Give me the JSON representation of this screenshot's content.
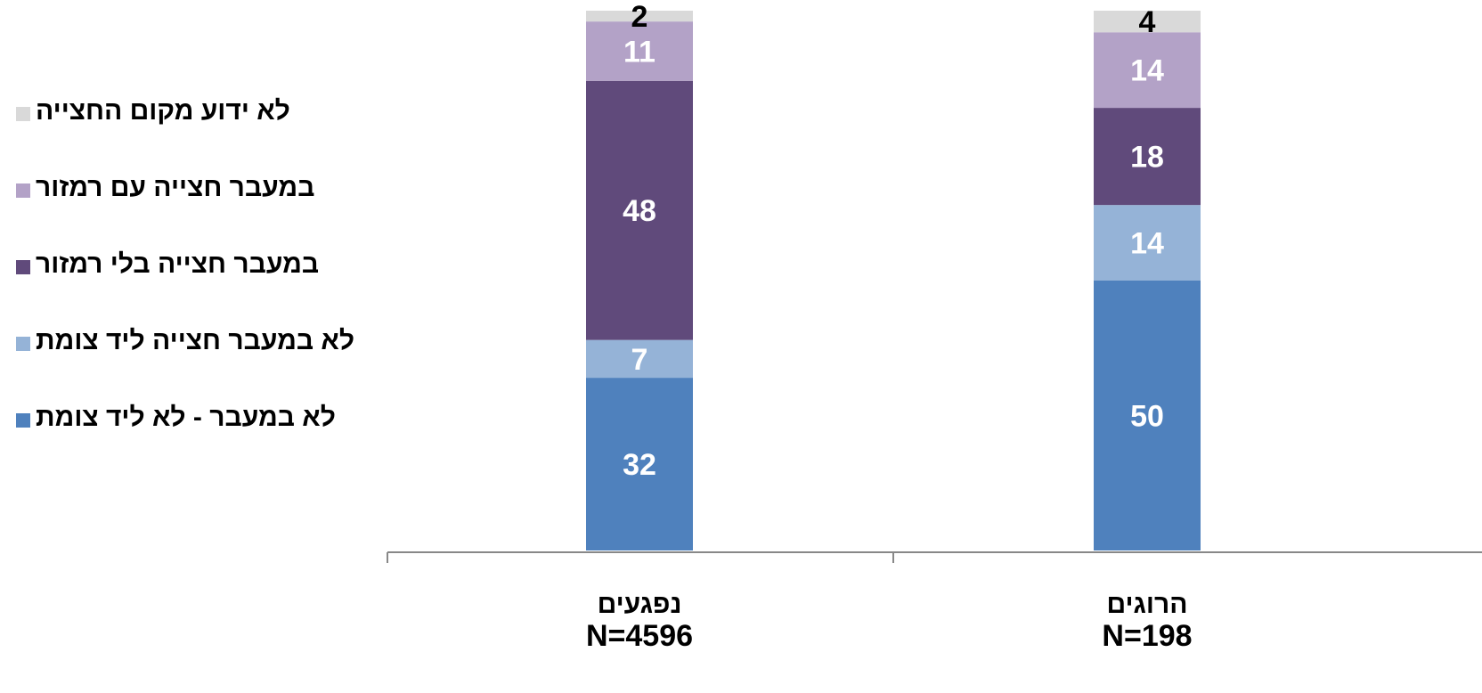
{
  "chart_data": {
    "type": "bar",
    "stacked": true,
    "categories": [
      "נפגעים",
      "הרוגים"
    ],
    "category_n": [
      "N=4596",
      "N=198"
    ],
    "series": [
      {
        "name": "לא במעבר - לא ליד צומת",
        "color": "#4f81bd",
        "values": [
          32,
          50
        ],
        "label_color": "#ffffff"
      },
      {
        "name": "לא במעבר חצייה ליד צומת",
        "color": "#95b3d7",
        "values": [
          7,
          14
        ],
        "label_color": "#ffffff"
      },
      {
        "name": "במעבר חצייה בלי רמזור",
        "color": "#604a7b",
        "values": [
          48,
          18
        ],
        "label_color": "#ffffff"
      },
      {
        "name": "במעבר חצייה עם רמזור",
        "color": "#b3a2c7",
        "values": [
          11,
          14
        ],
        "label_color": "#ffffff"
      },
      {
        "name": "לא ידוע מקום החצייה",
        "color": "#d9d9d9",
        "values": [
          2,
          4
        ],
        "label_color": "#000000"
      }
    ],
    "legend_order": [
      4,
      3,
      2,
      1,
      0
    ],
    "ylim": [
      0,
      100
    ],
    "legend_position": "left",
    "grid": false
  }
}
